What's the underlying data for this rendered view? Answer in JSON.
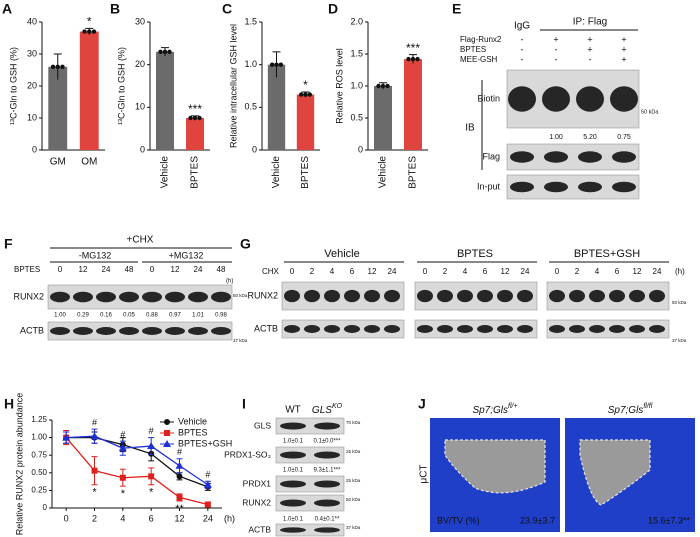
{
  "chart_data": [
    {
      "panel": "A",
      "type": "bar",
      "y_label": "¹³C-Gln to GSH (%)",
      "categories": [
        "GM",
        "OM"
      ],
      "values": [
        26,
        37
      ],
      "errors": [
        4,
        1
      ],
      "colors": [
        "#6b6b6b",
        "#e0443e"
      ],
      "ylim": [
        0,
        40
      ],
      "yticks": [
        0,
        10,
        20,
        30,
        40
      ],
      "significance": [
        null,
        "*"
      ]
    },
    {
      "panel": "B",
      "type": "bar",
      "y_label": "¹³C-Gln to GSH (%)",
      "categories": [
        "Vehicle",
        "BPTES"
      ],
      "values": [
        23,
        7.5
      ],
      "errors": [
        1,
        0.5
      ],
      "colors": [
        "#6b6b6b",
        "#e0443e"
      ],
      "ylim": [
        0,
        30
      ],
      "yticks": [
        0,
        10,
        20,
        30
      ],
      "significance": [
        null,
        "***"
      ]
    },
    {
      "panel": "C",
      "type": "bar",
      "y_label": "Relative intracellular GSH level",
      "categories": [
        "Vehicle",
        "BPTES"
      ],
      "values": [
        1.0,
        0.65
      ],
      "errors": [
        0.15,
        0.03
      ],
      "colors": [
        "#6b6b6b",
        "#e0443e"
      ],
      "ylim": [
        0,
        1.5
      ],
      "yticks": [
        0,
        0.5,
        {
          "value": 1,
          "label": "1.0"
        },
        1.5
      ],
      "significance": [
        null,
        "*"
      ]
    },
    {
      "panel": "D",
      "type": "bar",
      "y_label": "Relative ROS level",
      "categories": [
        "Vehicle",
        "BPTES"
      ],
      "values": [
        1.0,
        1.42
      ],
      "errors": [
        0.05,
        0.07
      ],
      "colors": [
        "#6b6b6b",
        "#e0443e"
      ],
      "ylim": [
        0,
        2
      ],
      "yticks": [
        0,
        0.5,
        {
          "value": 1,
          "label": "1.0"
        },
        1.5,
        {
          "value": 2,
          "label": "2.0"
        }
      ],
      "significance": [
        null,
        "***"
      ]
    },
    {
      "panel": "H",
      "type": "line",
      "y_label": "Relative RUNX2 protein abundance",
      "x_unit": "(h)",
      "categories": [
        "0",
        "2",
        "4",
        "6",
        "12",
        "24"
      ],
      "ylim": [
        0,
        1.25
      ],
      "yticks": [
        0,
        0.25,
        {
          "value": 0.5,
          "label": "0.50"
        },
        0.75,
        {
          "value": 1,
          "label": "1.00"
        },
        1.25
      ],
      "legend": "upper right",
      "series": [
        {
          "name": "Vehicle",
          "color": "#111111",
          "marker": "circle",
          "values": [
            1.0,
            1.0,
            0.9,
            0.77,
            0.45,
            0.3
          ],
          "errors": [
            0.08,
            0.08,
            0.1,
            0.1,
            0.05,
            0.05
          ]
        },
        {
          "name": "BPTES",
          "color": "#e0201c",
          "marker": "square",
          "values": [
            1.0,
            0.53,
            0.43,
            0.45,
            0.15,
            0.05
          ],
          "errors": [
            0.1,
            0.2,
            0.12,
            0.12,
            0.05,
            0.03
          ]
        },
        {
          "name": "BPTES+GSH",
          "color": "#1f2fd6",
          "marker": "triangle",
          "values": [
            1.0,
            1.02,
            0.85,
            0.88,
            0.6,
            0.33
          ],
          "errors": [
            0.08,
            0.1,
            0.1,
            0.12,
            0.1,
            0.05
          ]
        }
      ],
      "hash_marks": [
        null,
        "#",
        "#",
        "#",
        "#",
        "#"
      ],
      "star_marks": [
        null,
        "*",
        "*",
        "*",
        "**",
        null
      ]
    }
  ],
  "blots": {
    "E": {
      "panel": "E",
      "igg": "IgG",
      "ip": "IP: Flag",
      "rows": [
        {
          "label": "Flag-Runx2",
          "signs": [
            "-",
            "+",
            "+",
            "+"
          ]
        },
        {
          "label": "BPTES",
          "signs": [
            "-",
            "-",
            "+",
            "+"
          ]
        },
        {
          "label": "MEE-GSH",
          "signs": [
            "-",
            "-",
            "-",
            "+"
          ]
        }
      ],
      "ib": "IB",
      "blots": [
        "Biotin",
        "Flag",
        "In-put"
      ],
      "quant": [
        "1.00",
        "5.20",
        "0.75"
      ],
      "marker": "50 kDa"
    },
    "F": {
      "panel": "F",
      "treatment": "+CHX",
      "groups": [
        "-MG132",
        "+MG132"
      ],
      "time_label": "BPTES",
      "times": [
        "0",
        "12",
        "24",
        "48",
        "0",
        "12",
        "24",
        "48"
      ],
      "unit": "(h)",
      "blots": [
        "RUNX2",
        "ACTB"
      ],
      "quant": [
        "1.00",
        "0.29",
        "0.16",
        "0.05",
        "0.88",
        "0.97",
        "1.01",
        "0.98"
      ],
      "markers": [
        "50 kDa",
        "37 kDa"
      ]
    },
    "G": {
      "panel": "G",
      "groups": [
        "Vehicle",
        "BPTES",
        "BPTES+GSH"
      ],
      "time_label": "CHX",
      "times": [
        "0",
        "2",
        "4",
        "6",
        "12",
        "24"
      ],
      "unit": "(h)",
      "blots": [
        "RUNX2",
        "ACTB"
      ],
      "markers": [
        "50 kDa",
        "37 kDa"
      ]
    },
    "I": {
      "panel": "I",
      "columns": [
        {
          "text": "WT"
        },
        {
          "text": "GLS",
          "sup": "KO"
        }
      ],
      "rows": [
        {
          "label": "GLS",
          "quant": [
            "1.0±0.1",
            "0.1±0.0***"
          ],
          "marker": "70 kDa"
        },
        {
          "label": "PRDX1-SO₃",
          "quant": [
            "1.0±0.1",
            "9.3±1.1***"
          ],
          "marker": "25 kDa"
        },
        {
          "label": "PRDX1",
          "marker": "25 kDa"
        },
        {
          "label": "RUNX2",
          "quant": [
            "1.0±0.1",
            "0.4±0.1**"
          ],
          "marker": "50 kDa"
        },
        {
          "label": "ACTB",
          "marker": "37 kDa"
        }
      ]
    },
    "J": {
      "panel": "J",
      "modality": "μCT",
      "measure": "BV/TV (%)",
      "groups": [
        {
          "text": "Sp7;Gls",
          "sup": "fl/+",
          "value": "23.9±3.7"
        },
        {
          "text": "Sp7;Gls",
          "sup": "fl/fl",
          "value": "15.6±7.3**"
        }
      ]
    }
  }
}
